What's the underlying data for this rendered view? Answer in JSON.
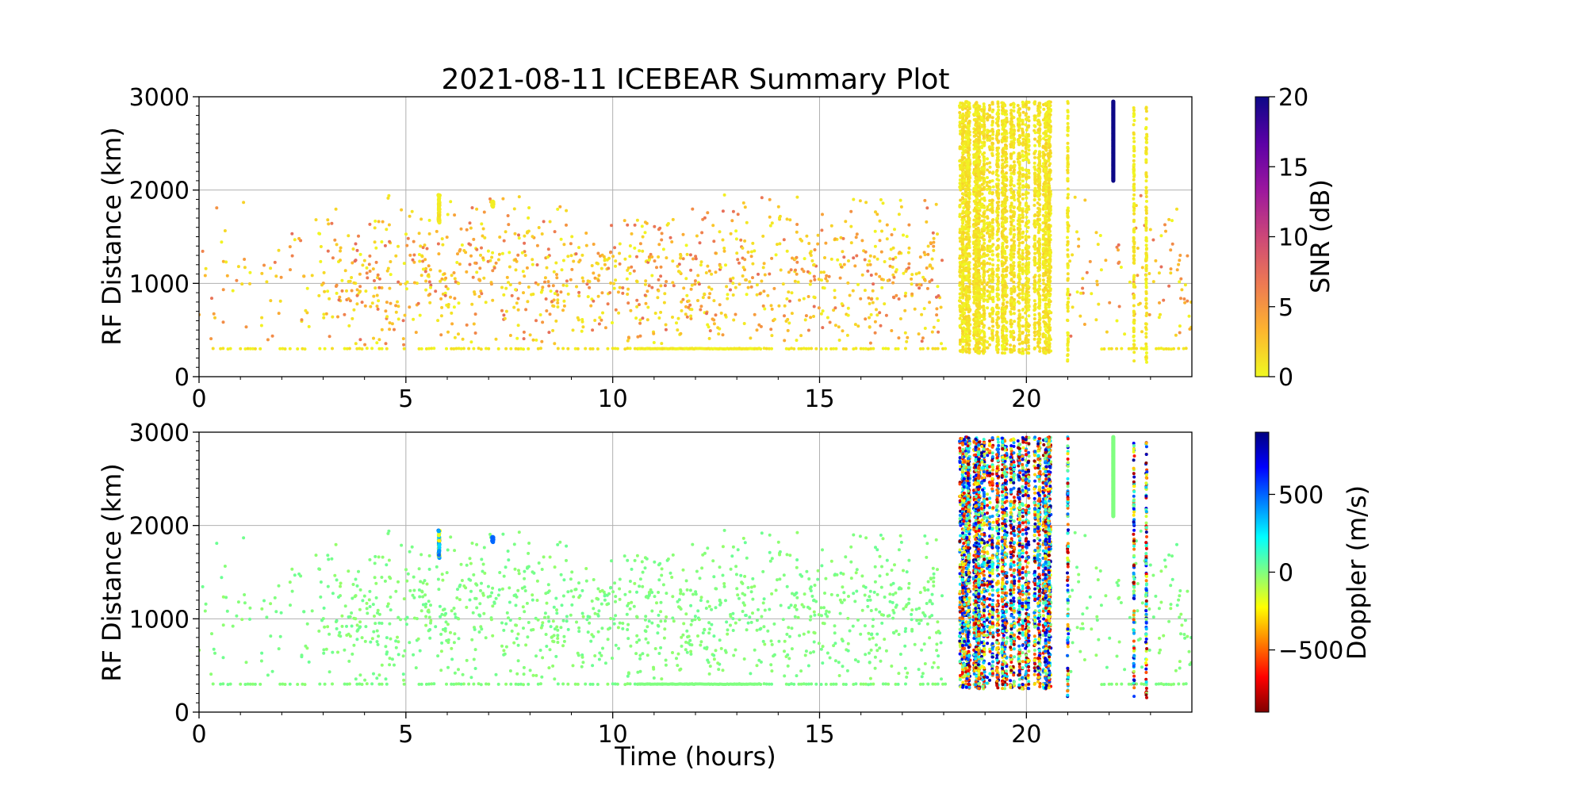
{
  "chart_data": [
    {
      "type": "scatter",
      "title": "2021-08-11 ICEBEAR Summary Plot",
      "xlabel": "",
      "ylabel": "RF Distance (km)",
      "xlim": [
        0,
        24
      ],
      "ylim": [
        0,
        3000
      ],
      "x_ticks": [
        "0",
        "5",
        "10",
        "15",
        "20"
      ],
      "y_ticks": [
        "0",
        "1000",
        "2000",
        "3000"
      ],
      "grid": true,
      "color_variable": "SNR",
      "colorbar": {
        "label": "SNR (dB)",
        "range": [
          0,
          20
        ],
        "ticks": [
          "0",
          "5",
          "10",
          "15",
          "20"
        ],
        "colormap": "plasma_r",
        "colors": [
          "#f0f921",
          "#fdb42f",
          "#ed7953",
          "#cc4778",
          "#9c179e",
          "#5c01a6",
          "#0d0887"
        ]
      },
      "features": {
        "baseline_range_km": 300,
        "scattered_band_km": [
          300,
          2000
        ],
        "scattered_band_typical_snr_db": [
          0,
          5
        ],
        "dense_vertical_streaks_hours": [
          18.3,
          20.6
        ],
        "streak_lines_hours": [
          21.0,
          22.6,
          22.9
        ],
        "high_snr_streak": {
          "time_hours": 22.1,
          "range_km": [
            2100,
            2950
          ],
          "snr_db": 20
        },
        "cluster_near_5_8h": {
          "time_hours": 5.8,
          "range_km": [
            1650,
            1950
          ]
        },
        "cluster_near_7_1h": {
          "time_hours": 7.1,
          "range_km": [
            1820,
            1880
          ]
        }
      }
    },
    {
      "type": "scatter",
      "title": "",
      "xlabel": "Time (hours)",
      "ylabel": "RF Distance (km)",
      "xlim": [
        0,
        24
      ],
      "ylim": [
        0,
        3000
      ],
      "x_ticks": [
        "0",
        "5",
        "10",
        "15",
        "20"
      ],
      "y_ticks": [
        "0",
        "1000",
        "2000",
        "3000"
      ],
      "grid": true,
      "color_variable": "Doppler",
      "colorbar": {
        "label": "Doppler (m/s)",
        "range": [
          -900,
          900
        ],
        "ticks": [
          "−500",
          "0",
          "500"
        ],
        "tick_values": [
          -500,
          0,
          500
        ],
        "colormap": "jet_r",
        "colors": [
          "#800000",
          "#ff0000",
          "#ff8000",
          "#ffff00",
          "#80ff80",
          "#00ffff",
          "#0080ff",
          "#0000ff",
          "#000080"
        ]
      },
      "features": {
        "baseline_range_km": 300,
        "scattered_band_typical_doppler_ms": 0,
        "dense_vertical_streaks_hours": [
          18.3,
          20.6
        ],
        "streak_lines_hours": [
          21.0,
          22.6,
          22.9
        ],
        "near_zero_streak": {
          "time_hours": 22.1,
          "range_km": [
            2100,
            2950
          ],
          "doppler_ms": 0
        },
        "cluster_near_5_8h": {
          "time_hours": 5.8,
          "range_km": [
            1500,
            1950
          ],
          "doppler_ms": [
            -300,
            400
          ]
        },
        "cluster_near_7_1h": {
          "time_hours": 7.1,
          "range_km": [
            1820,
            1880
          ],
          "doppler_ms": 500
        }
      }
    }
  ]
}
